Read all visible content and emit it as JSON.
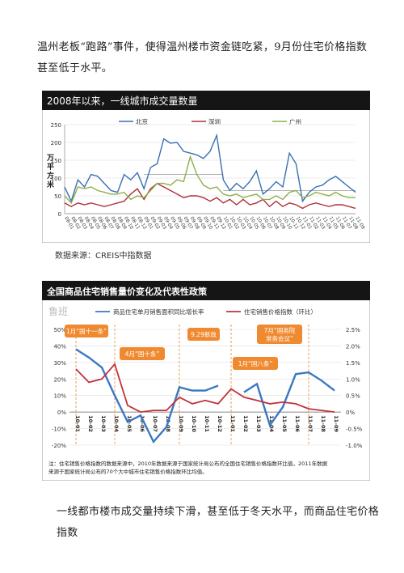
{
  "text": {
    "para1": "温州老板“跑路”事件，使得温州楼市资金链吃紧，9月份住宅价格指数甚至低于水平。",
    "caption1": "数据来源：CREIS中指数据",
    "para2": "一线都市楼市成交量持续下滑，甚至低于冬天水平，而商品住宅价格指数"
  },
  "chart_data": [
    {
      "type": "line",
      "title": "2008年以来，一线城市成交量数量",
      "ylabel": "万平方米",
      "ylim": [
        0,
        250
      ],
      "yticks": [
        0,
        50,
        100,
        150,
        200,
        250
      ],
      "x": [
        "08-01",
        "08-02",
        "08-03",
        "08-04",
        "08-05",
        "08-06",
        "08-07",
        "08-08",
        "08-09",
        "08-10",
        "08-11",
        "08-12",
        "09-01",
        "09-02",
        "09-03",
        "09-04",
        "09-05",
        "09-06",
        "09-07",
        "09-08",
        "09-09",
        "09-10",
        "09-11",
        "09-12",
        "10-01",
        "10-02",
        "10-03",
        "10-04",
        "10-05",
        "10-06",
        "10-07",
        "10-08",
        "10-09",
        "10-10",
        "10-11",
        "10-12",
        "11-01",
        "11-02",
        "11-03",
        "11-04",
        "11-05",
        "11-06",
        "11-07",
        "11-08",
        "11-09"
      ],
      "legend": [
        "北京",
        "深圳",
        "广州"
      ],
      "colors": {
        "北京": "#3a6fb5",
        "深圳": "#b0303a",
        "广州": "#8db04a"
      },
      "series": [
        {
          "name": "北京",
          "values": [
            75,
            35,
            95,
            75,
            110,
            105,
            85,
            65,
            60,
            110,
            95,
            115,
            70,
            130,
            140,
            210,
            198,
            200,
            175,
            170,
            165,
            155,
            175,
            220,
            95,
            65,
            85,
            70,
            90,
            120,
            55,
            70,
            90,
            75,
            170,
            140,
            35,
            60,
            75,
            80,
            95,
            105,
            90,
            75,
            60
          ]
        },
        {
          "name": "深圳",
          "values": [
            30,
            20,
            30,
            25,
            30,
            25,
            20,
            25,
            30,
            35,
            55,
            70,
            40,
            70,
            85,
            75,
            65,
            55,
            45,
            50,
            50,
            45,
            35,
            45,
            30,
            40,
            25,
            40,
            25,
            30,
            40,
            20,
            35,
            20,
            30,
            25,
            15,
            25,
            30,
            25,
            20,
            25,
            25,
            20,
            15
          ]
        },
        {
          "name": "广州",
          "values": [
            50,
            30,
            75,
            70,
            75,
            65,
            60,
            55,
            55,
            60,
            40,
            50,
            45,
            65,
            85,
            85,
            80,
            95,
            90,
            160,
            110,
            80,
            70,
            75,
            55,
            50,
            55,
            45,
            50,
            55,
            40,
            40,
            50,
            40,
            60,
            65,
            45,
            50,
            60,
            55,
            50,
            60,
            50,
            45,
            45
          ]
        }
      ]
    },
    {
      "type": "line",
      "title": "全国商品住宅销售量价变化及代表性政策",
      "watermark": "鲁班",
      "legend": [
        "商品住宅单月销售面积同比增长率",
        "住宅销售价格指数（环比）"
      ],
      "ylim_left": [
        -20,
        50
      ],
      "ylim_right": [
        -1.0,
        2.5
      ],
      "yticks_left": [
        "50%",
        "40%",
        "30%",
        "20%",
        "10%",
        "0%",
        "-10%",
        "-20%"
      ],
      "yticks_right": [
        "2.5%",
        "2.0%",
        "1.5%",
        "1.0%",
        "0.5%",
        "0%",
        "-0.5%",
        "-1.0%"
      ],
      "x_ticks": [
        "10-01",
        "10-02",
        "10-03",
        "10-04",
        "10-05",
        "10-06",
        "10-07",
        "10-08",
        "10-09",
        "10-10",
        "10-11",
        "10-12",
        "11-01",
        "11-02",
        "11-03",
        "11-04",
        "11-05",
        "11-06",
        "11-07",
        "11-08",
        "11-09"
      ],
      "series": [
        {
          "name": "商品住宅单月销售面积同比增长率",
          "color": "#3a78c2",
          "values": [
            38,
            33,
            27,
            10,
            -6,
            -2,
            -18,
            -9,
            15,
            13,
            13,
            16,
            null,
            12,
            17,
            -8,
            3,
            23,
            24,
            19,
            13
          ]
        },
        {
          "name": "住宅销售价格指数（环比）",
          "color": "#c0323b",
          "values": [
            1.3,
            0.9,
            1.0,
            1.45,
            0.2,
            0.0,
            0.05,
            0.05,
            0.45,
            0.25,
            0.35,
            0.25,
            0.7,
            0.45,
            0.35,
            0.25,
            0.3,
            0.25,
            0.1,
            0.05,
            0.0
          ]
        }
      ],
      "annotations": [
        "1月“国十一条”",
        "4月“国十条”",
        "9.29新政",
        "7月“国务院常务会议”",
        "1月“国八条”"
      ],
      "note": "注：住宅销售价格指数的数据来源中，2010年数据来源于国家统计局公布的全国住宅销售价格指数环比值，2011年数据来源于国家统计局公布的70个大中城市住宅销售价格指数环比均值。"
    }
  ]
}
